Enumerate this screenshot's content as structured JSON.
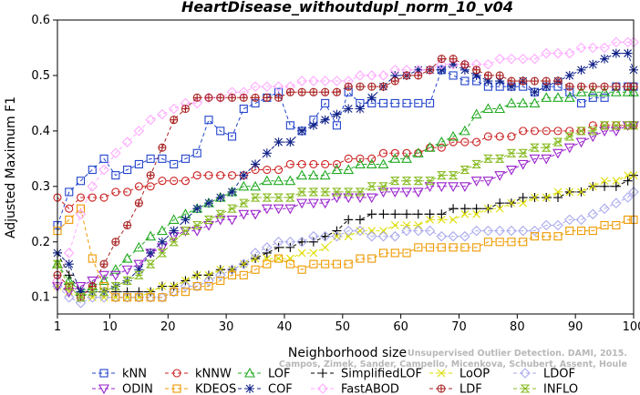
{
  "chart_data": {
    "type": "line",
    "title": "HeartDisease_withoutdupl_norm_10_v04",
    "xlabel": "Neighborhood size",
    "ylabel": "Adjusted Maximum F1",
    "xlim": [
      1,
      100
    ],
    "ylim": [
      0.07,
      0.6
    ],
    "xticks": [
      1,
      10,
      20,
      30,
      40,
      50,
      60,
      70,
      80,
      90,
      100
    ],
    "yticks": [
      0.1,
      0.2,
      0.3,
      0.4,
      0.5,
      0.6
    ],
    "x": [
      1,
      3,
      5,
      7,
      9,
      11,
      13,
      15,
      17,
      19,
      21,
      23,
      25,
      27,
      29,
      31,
      33,
      35,
      37,
      39,
      41,
      43,
      45,
      47,
      49,
      51,
      53,
      55,
      57,
      59,
      61,
      63,
      65,
      67,
      69,
      71,
      73,
      75,
      77,
      79,
      81,
      83,
      85,
      87,
      89,
      91,
      93,
      95,
      97,
      99,
      100
    ],
    "series": [
      {
        "name": "kNN",
        "color": "#2244cc",
        "marker": "square",
        "values": [
          0.23,
          0.29,
          0.31,
          0.33,
          0.35,
          0.32,
          0.33,
          0.34,
          0.35,
          0.35,
          0.34,
          0.35,
          0.36,
          0.42,
          0.4,
          0.39,
          0.44,
          0.45,
          0.46,
          0.47,
          0.41,
          0.4,
          0.42,
          0.45,
          0.41,
          0.47,
          0.45,
          0.45,
          0.45,
          0.45,
          0.45,
          0.45,
          0.45,
          0.51,
          0.5,
          0.49,
          0.49,
          0.48,
          0.48,
          0.48,
          0.48,
          0.47,
          0.48,
          0.48,
          0.47,
          0.45,
          0.46,
          0.46,
          0.48,
          0.48,
          0.48
        ]
      },
      {
        "name": "kNNW",
        "color": "#cc2222",
        "marker": "circle",
        "values": [
          0.28,
          0.26,
          0.28,
          0.28,
          0.28,
          0.29,
          0.29,
          0.3,
          0.3,
          0.31,
          0.31,
          0.31,
          0.32,
          0.32,
          0.32,
          0.32,
          0.32,
          0.33,
          0.33,
          0.33,
          0.34,
          0.34,
          0.34,
          0.34,
          0.34,
          0.35,
          0.35,
          0.35,
          0.36,
          0.36,
          0.36,
          0.36,
          0.37,
          0.37,
          0.38,
          0.38,
          0.38,
          0.39,
          0.39,
          0.39,
          0.4,
          0.4,
          0.4,
          0.4,
          0.4,
          0.4,
          0.41,
          0.41,
          0.41,
          0.41,
          0.41
        ]
      },
      {
        "name": "LOF",
        "color": "#22aa22",
        "marker": "triangle-up",
        "values": [
          0.16,
          0.13,
          0.11,
          0.12,
          0.13,
          0.15,
          0.17,
          0.19,
          0.21,
          0.22,
          0.24,
          0.25,
          0.26,
          0.27,
          0.28,
          0.29,
          0.3,
          0.3,
          0.31,
          0.31,
          0.31,
          0.32,
          0.32,
          0.32,
          0.33,
          0.33,
          0.34,
          0.34,
          0.34,
          0.35,
          0.35,
          0.36,
          0.37,
          0.38,
          0.39,
          0.4,
          0.43,
          0.44,
          0.44,
          0.45,
          0.45,
          0.45,
          0.46,
          0.46,
          0.46,
          0.47,
          0.47,
          0.47,
          0.47,
          0.47,
          0.47
        ]
      },
      {
        "name": "SimplifiedLOF",
        "color": "#000000",
        "marker": "plus",
        "values": [
          0.18,
          0.14,
          0.11,
          0.11,
          0.11,
          0.11,
          0.11,
          0.11,
          0.11,
          0.12,
          0.12,
          0.13,
          0.14,
          0.14,
          0.15,
          0.15,
          0.16,
          0.17,
          0.18,
          0.19,
          0.19,
          0.2,
          0.2,
          0.21,
          0.22,
          0.24,
          0.24,
          0.25,
          0.25,
          0.25,
          0.25,
          0.25,
          0.25,
          0.25,
          0.26,
          0.26,
          0.26,
          0.26,
          0.27,
          0.27,
          0.28,
          0.28,
          0.28,
          0.28,
          0.29,
          0.29,
          0.3,
          0.3,
          0.3,
          0.31,
          0.32
        ]
      },
      {
        "name": "LoOP",
        "color": "#dddd00",
        "marker": "cross",
        "values": [
          0.12,
          0.11,
          0.1,
          0.1,
          0.1,
          0.1,
          0.1,
          0.1,
          0.11,
          0.12,
          0.12,
          0.13,
          0.14,
          0.14,
          0.15,
          0.15,
          0.16,
          0.17,
          0.17,
          0.17,
          0.17,
          0.18,
          0.18,
          0.19,
          0.21,
          0.21,
          0.22,
          0.22,
          0.22,
          0.23,
          0.23,
          0.23,
          0.24,
          0.24,
          0.24,
          0.25,
          0.25,
          0.26,
          0.26,
          0.27,
          0.27,
          0.28,
          0.28,
          0.29,
          0.29,
          0.29,
          0.3,
          0.31,
          0.31,
          0.32,
          0.32
        ]
      },
      {
        "name": "LDOF",
        "color": "#aaaaee",
        "marker": "diamond",
        "values": [
          0.12,
          0.1,
          0.09,
          0.1,
          0.1,
          0.1,
          0.1,
          0.1,
          0.1,
          0.1,
          0.11,
          0.12,
          0.12,
          0.13,
          0.14,
          0.15,
          0.16,
          0.18,
          0.19,
          0.2,
          0.2,
          0.2,
          0.21,
          0.21,
          0.21,
          0.22,
          0.22,
          0.21,
          0.21,
          0.21,
          0.22,
          0.22,
          0.22,
          0.21,
          0.21,
          0.21,
          0.22,
          0.22,
          0.22,
          0.22,
          0.22,
          0.22,
          0.23,
          0.23,
          0.24,
          0.24,
          0.25,
          0.26,
          0.27,
          0.28,
          0.29
        ]
      },
      {
        "name": "ODIN",
        "color": "#9922cc",
        "marker": "triangle-down",
        "values": [
          0.12,
          0.11,
          0.12,
          0.13,
          0.14,
          0.14,
          0.15,
          0.16,
          0.18,
          0.19,
          0.21,
          0.22,
          0.22,
          0.23,
          0.24,
          0.24,
          0.25,
          0.25,
          0.26,
          0.26,
          0.26,
          0.27,
          0.27,
          0.27,
          0.28,
          0.28,
          0.28,
          0.28,
          0.29,
          0.29,
          0.29,
          0.29,
          0.3,
          0.3,
          0.3,
          0.3,
          0.31,
          0.31,
          0.32,
          0.33,
          0.34,
          0.35,
          0.35,
          0.36,
          0.37,
          0.38,
          0.39,
          0.4,
          0.4,
          0.41,
          0.41
        ]
      },
      {
        "name": "KDEOS",
        "color": "#ee9900",
        "marker": "square",
        "values": [
          0.22,
          0.24,
          0.26,
          0.17,
          0.12,
          0.1,
          0.1,
          0.1,
          0.1,
          0.1,
          0.11,
          0.11,
          0.12,
          0.12,
          0.13,
          0.14,
          0.14,
          0.15,
          0.16,
          0.17,
          0.16,
          0.15,
          0.16,
          0.16,
          0.16,
          0.16,
          0.17,
          0.17,
          0.18,
          0.18,
          0.18,
          0.19,
          0.19,
          0.19,
          0.19,
          0.19,
          0.19,
          0.2,
          0.2,
          0.2,
          0.2,
          0.21,
          0.21,
          0.21,
          0.22,
          0.22,
          0.22,
          0.23,
          0.23,
          0.24,
          0.24
        ]
      },
      {
        "name": "COF",
        "color": "#112288",
        "marker": "asterisk",
        "values": [
          0.18,
          0.16,
          0.11,
          0.11,
          0.11,
          0.12,
          0.13,
          0.15,
          0.18,
          0.2,
          0.22,
          0.24,
          0.26,
          0.27,
          0.28,
          0.29,
          0.32,
          0.34,
          0.36,
          0.38,
          0.38,
          0.4,
          0.41,
          0.42,
          0.43,
          0.44,
          0.44,
          0.46,
          0.48,
          0.5,
          0.5,
          0.51,
          0.51,
          0.51,
          0.52,
          0.51,
          0.5,
          0.49,
          0.49,
          0.48,
          0.49,
          0.47,
          0.48,
          0.49,
          0.5,
          0.51,
          0.52,
          0.53,
          0.54,
          0.54,
          0.51
        ]
      },
      {
        "name": "FastABOD",
        "color": "#ffaaff",
        "marker": "diamond",
        "values": [
          0.13,
          0.18,
          0.25,
          0.3,
          0.33,
          0.36,
          0.38,
          0.4,
          0.42,
          0.43,
          0.44,
          0.45,
          0.45,
          0.46,
          0.46,
          0.47,
          0.47,
          0.48,
          0.48,
          0.48,
          0.48,
          0.49,
          0.49,
          0.49,
          0.49,
          0.49,
          0.5,
          0.5,
          0.5,
          0.51,
          0.51,
          0.51,
          0.51,
          0.52,
          0.52,
          0.52,
          0.52,
          0.52,
          0.53,
          0.53,
          0.53,
          0.53,
          0.54,
          0.54,
          0.54,
          0.55,
          0.55,
          0.55,
          0.56,
          0.56,
          0.56
        ]
      },
      {
        "name": "LDF",
        "color": "#aa2222",
        "marker": "circle-plus",
        "values": [
          0.14,
          0.12,
          0.1,
          0.12,
          0.16,
          0.2,
          0.23,
          0.27,
          0.32,
          0.37,
          0.42,
          0.44,
          0.46,
          0.46,
          0.46,
          0.46,
          0.46,
          0.46,
          0.46,
          0.46,
          0.47,
          0.47,
          0.47,
          0.47,
          0.47,
          0.48,
          0.48,
          0.48,
          0.48,
          0.49,
          0.5,
          0.5,
          0.51,
          0.53,
          0.53,
          0.52,
          0.51,
          0.5,
          0.5,
          0.49,
          0.49,
          0.49,
          0.49,
          0.49,
          0.48,
          0.48,
          0.48,
          0.48,
          0.48,
          0.48,
          0.48
        ]
      },
      {
        "name": "INFLO",
        "color": "#88bb22",
        "marker": "hourglass",
        "values": [
          0.16,
          0.12,
          0.1,
          0.11,
          0.11,
          0.12,
          0.13,
          0.14,
          0.16,
          0.18,
          0.2,
          0.22,
          0.23,
          0.24,
          0.25,
          0.26,
          0.27,
          0.28,
          0.28,
          0.28,
          0.28,
          0.29,
          0.29,
          0.29,
          0.29,
          0.29,
          0.29,
          0.3,
          0.3,
          0.31,
          0.31,
          0.31,
          0.31,
          0.32,
          0.32,
          0.33,
          0.34,
          0.35,
          0.35,
          0.36,
          0.36,
          0.37,
          0.37,
          0.38,
          0.39,
          0.4,
          0.4,
          0.41,
          0.41,
          0.41,
          0.41
        ]
      }
    ],
    "legend": {
      "placement": "bottom",
      "rows": [
        [
          "kNN",
          "kNNW",
          "LOF",
          "SimplifiedLOF",
          "LoOP",
          "LDOF"
        ],
        [
          "ODIN",
          "KDEOS",
          "COF",
          "FastABOD",
          "LDF",
          "INFLO"
        ]
      ]
    },
    "watermark": [
      "Unsupervised Outlier Detection. DAMI, 2015.",
      "Campos, Zimek, Sander, Campello, Micenkova, Schubert, Assent, Houle"
    ]
  }
}
